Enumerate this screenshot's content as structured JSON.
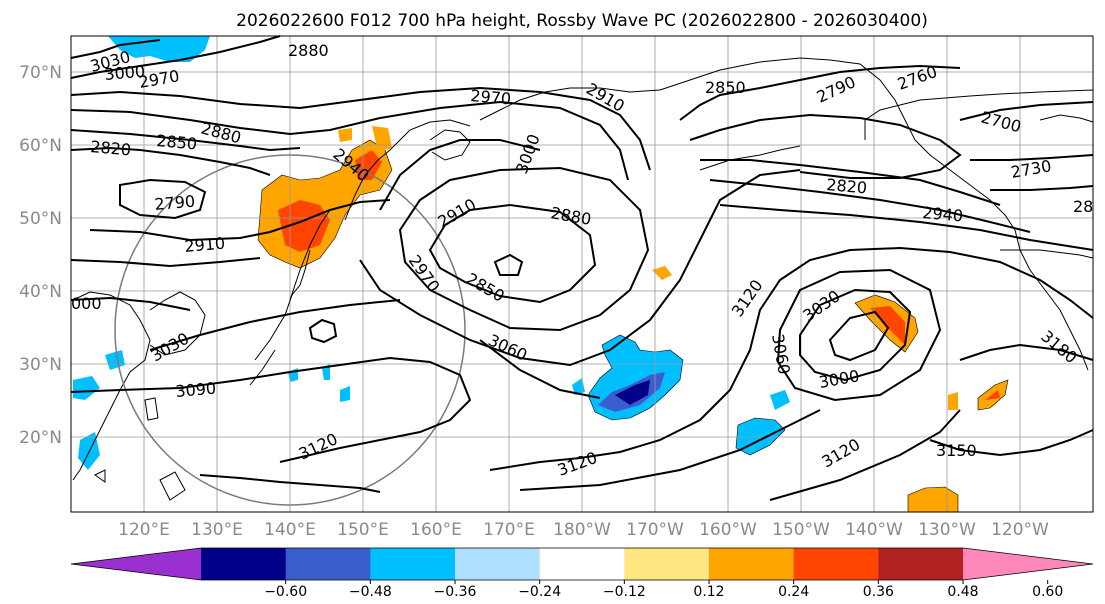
{
  "title": "2026022600 F012 700 hPa height, Rossby Wave PC (2026022800 - 2026030400)",
  "lat_labels": [
    "70°N",
    "60°N",
    "50°N",
    "40°N",
    "30°N",
    "20°N"
  ],
  "lon_labels": [
    "120°E",
    "130°E",
    "140°E",
    "150°E",
    "160°E",
    "170°E",
    "180°W",
    "170°W",
    "160°W",
    "150°W",
    "140°W",
    "130°W",
    "120°W"
  ],
  "contour_labels": [
    "3030",
    "3000",
    "2970",
    "2880",
    "2970",
    "2910",
    "2850",
    "2790",
    "2760",
    "2700",
    "2820",
    "2850",
    "2880",
    "2940",
    "2730",
    "2790",
    "2910",
    "3000",
    "2910",
    "2880",
    "2820",
    "2940",
    "28",
    "2970",
    "2850",
    "3120",
    "3030",
    "000",
    "3060",
    "3030",
    "3090",
    "3060",
    "3000",
    "3120",
    "3120",
    "3120",
    "3150",
    "3180"
  ],
  "colorbar": {
    "ticks": [
      "−0.60",
      "−0.48",
      "−0.36",
      "−0.24",
      "−0.12",
      "0.12",
      "0.24",
      "0.36",
      "0.48",
      "0.60"
    ],
    "colors": [
      "#9b30d0",
      "#00008b",
      "#3a5fcd",
      "#00bfff",
      "#b0e0ff",
      "#ffffff",
      "#ffe680",
      "#ffa500",
      "#ff4500",
      "#b22222",
      "#ff88bb"
    ]
  }
}
